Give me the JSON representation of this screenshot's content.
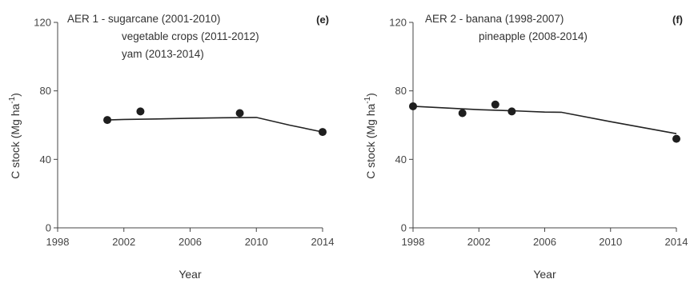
{
  "chart_data": [
    {
      "type": "line",
      "panel_label": "(e)",
      "annotation": [
        "AER 1 - sugarcane (2001-2010)",
        "vegetable crops (2011-2012)",
        "yam (2013-2014)"
      ],
      "xlabel": "Year",
      "ylabel": "C stock (Mg ha",
      "ylabel_sup": "-1",
      "ylabel_end": ")",
      "xlim": [
        1998,
        2014
      ],
      "ylim": [
        0,
        120
      ],
      "xticks": [
        1998,
        2002,
        2006,
        2010,
        2014
      ],
      "yticks": [
        0,
        40,
        80,
        120
      ],
      "series": [
        {
          "kind": "observed",
          "x": [
            2001,
            2003,
            2009,
            2014
          ],
          "y": [
            63,
            68,
            67,
            56
          ]
        },
        {
          "kind": "modelled",
          "x": [
            2001,
            2002,
            2004,
            2006,
            2008,
            2010,
            2012,
            2014
          ],
          "y": [
            63,
            63.3,
            63.6,
            64.0,
            64.3,
            64.5,
            60,
            56
          ]
        }
      ]
    },
    {
      "type": "line",
      "panel_label": "(f)",
      "annotation": [
        "AER 2 - banana (1998-2007)",
        "pineapple (2008-2014)"
      ],
      "xlabel": "Year",
      "ylabel": "C stock (Mg ha",
      "ylabel_sup": "-1",
      "ylabel_end": ")",
      "xlim": [
        1998,
        2014
      ],
      "ylim": [
        0,
        120
      ],
      "xticks": [
        1998,
        2002,
        2006,
        2010,
        2014
      ],
      "yticks": [
        0,
        40,
        80,
        120
      ],
      "series": [
        {
          "kind": "observed",
          "x": [
            1998,
            2001,
            2003,
            2004,
            2014
          ],
          "y": [
            71,
            67,
            72,
            68,
            52
          ]
        },
        {
          "kind": "modelled",
          "x": [
            1998,
            2000,
            2002,
            2004,
            2006,
            2007,
            2010,
            2014
          ],
          "y": [
            71,
            70,
            69,
            68.4,
            67.6,
            67.5,
            62,
            55
          ]
        }
      ]
    }
  ]
}
